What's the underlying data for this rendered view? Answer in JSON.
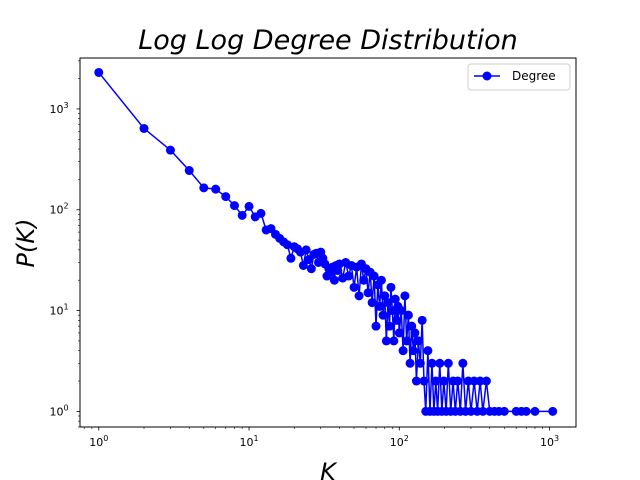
{
  "chart_data": {
    "type": "line",
    "title": "Log Log Degree Distribution",
    "xlabel": "K",
    "ylabel": "P(K)",
    "xscale": "log",
    "yscale": "log",
    "xlim": [
      0.75,
      1500
    ],
    "ylim": [
      0.7,
      3200
    ],
    "grid": false,
    "legend": {
      "position": "upper right",
      "entries": [
        "Degree"
      ]
    },
    "x_ticks": [
      {
        "base": "10",
        "exp": "0",
        "value": 1
      },
      {
        "base": "10",
        "exp": "1",
        "value": 10
      },
      {
        "base": "10",
        "exp": "2",
        "value": 100
      },
      {
        "base": "10",
        "exp": "3",
        "value": 1000
      }
    ],
    "y_ticks": [
      {
        "base": "10",
        "exp": "0",
        "value": 1
      },
      {
        "base": "10",
        "exp": "1",
        "value": 10
      },
      {
        "base": "10",
        "exp": "2",
        "value": 100
      },
      {
        "base": "10",
        "exp": "3",
        "value": 1000
      }
    ],
    "series": [
      {
        "name": "Degree",
        "color": "#0000ff",
        "marker": "circle",
        "points": [
          [
            1,
            2300
          ],
          [
            2,
            640
          ],
          [
            3,
            390
          ],
          [
            4,
            245
          ],
          [
            5,
            165
          ],
          [
            6,
            160
          ],
          [
            7,
            135
          ],
          [
            8,
            110
          ],
          [
            9,
            88
          ],
          [
            10,
            108
          ],
          [
            11,
            85
          ],
          [
            12,
            92
          ],
          [
            13,
            63
          ],
          [
            14,
            65
          ],
          [
            15,
            57
          ],
          [
            16,
            52
          ],
          [
            17,
            48
          ],
          [
            18,
            45
          ],
          [
            19,
            33
          ],
          [
            20,
            43
          ],
          [
            21,
            41
          ],
          [
            22,
            38
          ],
          [
            23,
            28
          ],
          [
            24,
            40
          ],
          [
            25,
            32
          ],
          [
            26,
            26
          ],
          [
            27,
            36
          ],
          [
            28,
            37
          ],
          [
            29,
            30
          ],
          [
            30,
            38
          ],
          [
            31,
            33
          ],
          [
            32,
            29
          ],
          [
            33,
            22
          ],
          [
            34,
            26
          ],
          [
            35,
            24
          ],
          [
            36,
            27
          ],
          [
            37,
            20
          ],
          [
            38,
            28
          ],
          [
            39,
            25
          ],
          [
            40,
            29
          ],
          [
            42,
            21
          ],
          [
            44,
            30
          ],
          [
            46,
            22
          ],
          [
            48,
            28
          ],
          [
            50,
            17
          ],
          [
            52,
            27
          ],
          [
            54,
            14
          ],
          [
            56,
            29
          ],
          [
            58,
            20
          ],
          [
            60,
            26
          ],
          [
            62,
            15
          ],
          [
            64,
            24
          ],
          [
            66,
            12
          ],
          [
            68,
            22
          ],
          [
            70,
            7
          ],
          [
            72,
            18
          ],
          [
            74,
            11
          ],
          [
            76,
            20
          ],
          [
            78,
            9
          ],
          [
            80,
            14
          ],
          [
            82,
            5
          ],
          [
            84,
            12
          ],
          [
            86,
            7
          ],
          [
            88,
            17
          ],
          [
            90,
            10
          ],
          [
            92,
            5
          ],
          [
            94,
            13
          ],
          [
            96,
            8
          ],
          [
            98,
            11
          ],
          [
            100,
            6
          ],
          [
            103,
            10
          ],
          [
            106,
            4
          ],
          [
            109,
            14
          ],
          [
            112,
            5
          ],
          [
            115,
            9
          ],
          [
            118,
            3
          ],
          [
            121,
            7
          ],
          [
            124,
            4
          ],
          [
            127,
            6
          ],
          [
            130,
            2
          ],
          [
            134,
            5
          ],
          [
            138,
            3
          ],
          [
            142,
            8
          ],
          [
            146,
            2
          ],
          [
            150,
            1
          ],
          [
            155,
            4
          ],
          [
            160,
            1
          ],
          [
            165,
            3
          ],
          [
            170,
            1
          ],
          [
            175,
            2
          ],
          [
            180,
            1
          ],
          [
            186,
            3
          ],
          [
            192,
            1
          ],
          [
            198,
            2
          ],
          [
            205,
            1
          ],
          [
            212,
            3
          ],
          [
            220,
            1
          ],
          [
            228,
            2
          ],
          [
            236,
            1
          ],
          [
            245,
            2
          ],
          [
            255,
            1
          ],
          [
            265,
            3
          ],
          [
            276,
            1
          ],
          [
            288,
            2
          ],
          [
            300,
            1
          ],
          [
            315,
            2
          ],
          [
            330,
            1
          ],
          [
            345,
            2
          ],
          [
            360,
            1
          ],
          [
            380,
            2
          ],
          [
            400,
            1
          ],
          [
            430,
            1
          ],
          [
            460,
            1
          ],
          [
            500,
            1
          ],
          [
            600,
            1
          ],
          [
            650,
            1
          ],
          [
            700,
            1
          ],
          [
            800,
            1
          ],
          [
            1050,
            1
          ]
        ]
      }
    ]
  }
}
